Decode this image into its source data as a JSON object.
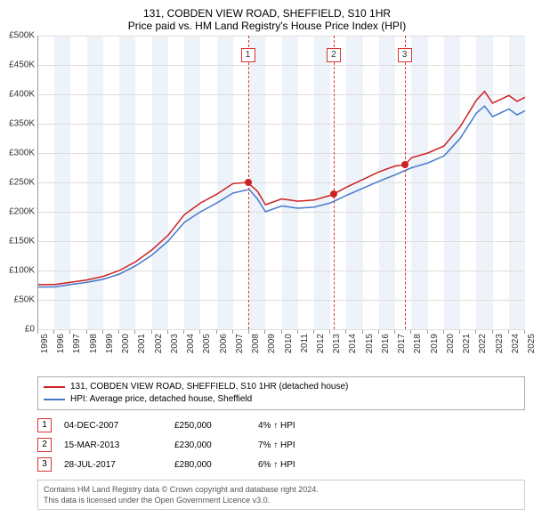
{
  "title": "131, COBDEN VIEW ROAD, SHEFFIELD, S10 1HR",
  "subtitle": "Price paid vs. HM Land Registry's House Price Index (HPI)",
  "chart": {
    "type": "line",
    "x_years": [
      1995,
      1996,
      1997,
      1998,
      1999,
      2000,
      2001,
      2002,
      2003,
      2004,
      2005,
      2006,
      2007,
      2008,
      2009,
      2010,
      2011,
      2012,
      2013,
      2014,
      2015,
      2016,
      2017,
      2018,
      2019,
      2020,
      2021,
      2022,
      2023,
      2024,
      2025
    ],
    "y_ticks": [
      0,
      50000,
      100000,
      150000,
      200000,
      250000,
      300000,
      350000,
      400000,
      450000,
      500000
    ],
    "ylim": [
      0,
      500000
    ],
    "colors": {
      "series_red": "#cc2222",
      "series_blue": "#4477cc",
      "grid": "#dddddd",
      "axis": "#999999",
      "band": "#eef3fa",
      "marker_border": "#d33333",
      "background": "#ffffff",
      "text": "#333333"
    },
    "line_width": 1.5,
    "series": {
      "red": {
        "label": "131, COBDEN VIEW ROAD, SHEFFIELD, S10 1HR (detached house)",
        "points": [
          [
            1995,
            76000
          ],
          [
            1996,
            76000
          ],
          [
            1997,
            80000
          ],
          [
            1998,
            84000
          ],
          [
            1999,
            90000
          ],
          [
            2000,
            100000
          ],
          [
            2001,
            115000
          ],
          [
            2002,
            135000
          ],
          [
            2003,
            160000
          ],
          [
            2004,
            195000
          ],
          [
            2005,
            215000
          ],
          [
            2006,
            230000
          ],
          [
            2007,
            248000
          ],
          [
            2007.9,
            250000
          ],
          [
            2008.5,
            235000
          ],
          [
            2009,
            212000
          ],
          [
            2010,
            222000
          ],
          [
            2011,
            218000
          ],
          [
            2012,
            220000
          ],
          [
            2013,
            228000
          ],
          [
            2013.2,
            230000
          ],
          [
            2014,
            242000
          ],
          [
            2015,
            255000
          ],
          [
            2016,
            268000
          ],
          [
            2017,
            278000
          ],
          [
            2017.6,
            280000
          ],
          [
            2018,
            292000
          ],
          [
            2019,
            300000
          ],
          [
            2020,
            312000
          ],
          [
            2021,
            345000
          ],
          [
            2022,
            390000
          ],
          [
            2022.5,
            405000
          ],
          [
            2023,
            385000
          ],
          [
            2024,
            398000
          ],
          [
            2024.5,
            388000
          ],
          [
            2025,
            395000
          ]
        ]
      },
      "blue": {
        "label": "HPI: Average price, detached house, Sheffield",
        "points": [
          [
            1995,
            72000
          ],
          [
            1996,
            72000
          ],
          [
            1997,
            76000
          ],
          [
            1998,
            80000
          ],
          [
            1999,
            85000
          ],
          [
            2000,
            94000
          ],
          [
            2001,
            108000
          ],
          [
            2002,
            126000
          ],
          [
            2003,
            150000
          ],
          [
            2004,
            182000
          ],
          [
            2005,
            200000
          ],
          [
            2006,
            215000
          ],
          [
            2007,
            232000
          ],
          [
            2008,
            238000
          ],
          [
            2008.5,
            222000
          ],
          [
            2009,
            200000
          ],
          [
            2010,
            210000
          ],
          [
            2011,
            206000
          ],
          [
            2012,
            208000
          ],
          [
            2013,
            215000
          ],
          [
            2014,
            228000
          ],
          [
            2015,
            240000
          ],
          [
            2016,
            252000
          ],
          [
            2017,
            263000
          ],
          [
            2018,
            275000
          ],
          [
            2019,
            283000
          ],
          [
            2020,
            295000
          ],
          [
            2021,
            325000
          ],
          [
            2022,
            368000
          ],
          [
            2022.5,
            380000
          ],
          [
            2023,
            362000
          ],
          [
            2024,
            375000
          ],
          [
            2024.5,
            365000
          ],
          [
            2025,
            372000
          ]
        ]
      }
    },
    "markers": [
      {
        "n": "1",
        "year": 2007.92,
        "value": 250000
      },
      {
        "n": "2",
        "year": 2013.2,
        "value": 230000
      },
      {
        "n": "3",
        "year": 2017.57,
        "value": 280000
      }
    ],
    "band_years": [
      1996,
      1998,
      2000,
      2002,
      2004,
      2006,
      2008,
      2010,
      2012,
      2014,
      2016,
      2018,
      2020,
      2022,
      2024
    ]
  },
  "legend": {
    "items": [
      {
        "color": "#cc2222",
        "key": "red"
      },
      {
        "color": "#4477cc",
        "key": "blue"
      }
    ]
  },
  "transactions": [
    {
      "n": "1",
      "date": "04-DEC-2007",
      "price": "£250,000",
      "pct": "4% ↑ HPI"
    },
    {
      "n": "2",
      "date": "15-MAR-2013",
      "price": "£230,000",
      "pct": "7% ↑ HPI"
    },
    {
      "n": "3",
      "date": "28-JUL-2017",
      "price": "£280,000",
      "pct": "6% ↑ HPI"
    }
  ],
  "footer": {
    "line1": "Contains HM Land Registry data © Crown copyright and database right 2024.",
    "line2": "This data is licensed under the Open Government Licence v3.0."
  },
  "currency_prefix": "£",
  "y_suffix": "K"
}
